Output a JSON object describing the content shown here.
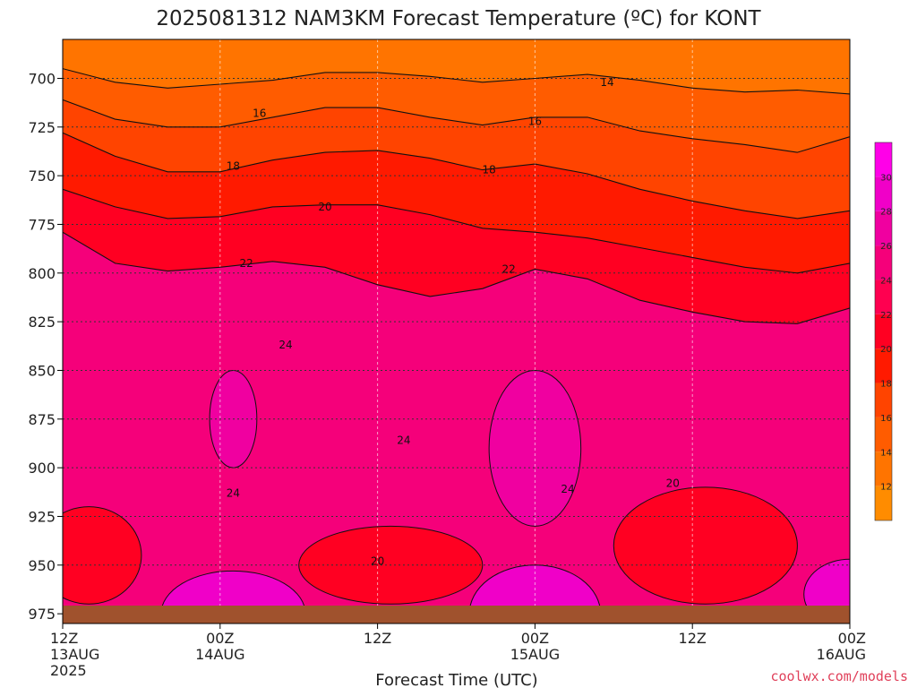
{
  "chart_data": {
    "type": "heatmap",
    "title": "2025081312 NAM3KM Forecast Temperature (ºC) for KONT",
    "xlabel": "Forecast Time (UTC)",
    "ylabel": "",
    "credit": "coolwx.com/models",
    "x_unit": "hours from 2025-08-13 12Z",
    "xlim": [
      0,
      60
    ],
    "ylim": [
      980,
      680
    ],
    "y_ticks": [
      700,
      725,
      750,
      775,
      800,
      825,
      850,
      875,
      900,
      925,
      950,
      975
    ],
    "x_ticks": [
      {
        "x": 0,
        "label": "12Z",
        "sub": "13AUG",
        "sub2": "2025"
      },
      {
        "x": 12,
        "label": "00Z",
        "sub": "14AUG",
        "sub2": ""
      },
      {
        "x": 24,
        "label": "12Z",
        "sub": "",
        "sub2": ""
      },
      {
        "x": 36,
        "label": "00Z",
        "sub": "15AUG",
        "sub2": ""
      },
      {
        "x": 48,
        "label": "12Z",
        "sub": "",
        "sub2": ""
      },
      {
        "x": 60,
        "label": "00Z",
        "sub": "16AUG",
        "sub2": ""
      }
    ],
    "grid": true,
    "surface_pressure_approx": 975,
    "colorbar": {
      "levels": [
        10,
        12,
        14,
        16,
        18,
        20,
        22,
        24,
        26,
        28,
        30,
        32
      ],
      "labels": [
        12,
        14,
        16,
        18,
        20,
        22,
        24,
        26,
        28,
        30
      ],
      "colors": [
        "#ff8c00",
        "#ff7400",
        "#ff5c00",
        "#ff4400",
        "#ff1a00",
        "#ff0022",
        "#ff0050",
        "#f5007a",
        "#f000a0",
        "#f000c8",
        "#ff00e8"
      ]
    },
    "contours": [
      {
        "level": 14,
        "points": [
          [
            0,
            695
          ],
          [
            4,
            702
          ],
          [
            8,
            705
          ],
          [
            12,
            703
          ],
          [
            16,
            701
          ],
          [
            20,
            697
          ],
          [
            24,
            697
          ],
          [
            28,
            699
          ],
          [
            32,
            702
          ],
          [
            36,
            700
          ],
          [
            40,
            698
          ],
          [
            44,
            701
          ],
          [
            48,
            705
          ],
          [
            52,
            707
          ],
          [
            56,
            706
          ],
          [
            60,
            708
          ]
        ]
      },
      {
        "level": 16,
        "points": [
          [
            0,
            711
          ],
          [
            4,
            721
          ],
          [
            8,
            725
          ],
          [
            12,
            725
          ],
          [
            16,
            720
          ],
          [
            20,
            715
          ],
          [
            24,
            715
          ],
          [
            28,
            720
          ],
          [
            32,
            724
          ],
          [
            36,
            720
          ],
          [
            40,
            720
          ],
          [
            44,
            727
          ],
          [
            48,
            731
          ],
          [
            52,
            734
          ],
          [
            56,
            738
          ],
          [
            60,
            730
          ]
        ]
      },
      {
        "level": 18,
        "points": [
          [
            0,
            728
          ],
          [
            4,
            740
          ],
          [
            8,
            748
          ],
          [
            12,
            748
          ],
          [
            16,
            742
          ],
          [
            20,
            738
          ],
          [
            24,
            737
          ],
          [
            28,
            741
          ],
          [
            32,
            747
          ],
          [
            36,
            744
          ],
          [
            40,
            749
          ],
          [
            44,
            757
          ],
          [
            48,
            763
          ],
          [
            52,
            768
          ],
          [
            56,
            772
          ],
          [
            60,
            768
          ]
        ]
      },
      {
        "level": 20,
        "points": [
          [
            0,
            757
          ],
          [
            4,
            766
          ],
          [
            8,
            772
          ],
          [
            12,
            771
          ],
          [
            16,
            766
          ],
          [
            20,
            765
          ],
          [
            24,
            765
          ],
          [
            28,
            770
          ],
          [
            32,
            777
          ],
          [
            36,
            779
          ],
          [
            40,
            782
          ],
          [
            44,
            787
          ],
          [
            48,
            792
          ],
          [
            52,
            797
          ],
          [
            56,
            800
          ],
          [
            60,
            795
          ]
        ]
      },
      {
        "level": 22,
        "points": [
          [
            0,
            779
          ],
          [
            4,
            795
          ],
          [
            8,
            799
          ],
          [
            12,
            797
          ],
          [
            16,
            794
          ],
          [
            20,
            797
          ],
          [
            24,
            806
          ],
          [
            28,
            812
          ],
          [
            32,
            808
          ],
          [
            36,
            798
          ],
          [
            40,
            803
          ],
          [
            44,
            814
          ],
          [
            48,
            820
          ],
          [
            52,
            825
          ],
          [
            56,
            826
          ],
          [
            60,
            818
          ]
        ]
      }
    ],
    "contour_labels": [
      {
        "text": "14",
        "x": 41.5,
        "p": 702
      },
      {
        "text": "16",
        "x": 15,
        "p": 718
      },
      {
        "text": "16",
        "x": 36,
        "p": 722
      },
      {
        "text": "18",
        "x": 13,
        "p": 745
      },
      {
        "text": "18",
        "x": 32.5,
        "p": 747
      },
      {
        "text": "20",
        "x": 20,
        "p": 766
      },
      {
        "text": "22",
        "x": 14,
        "p": 795
      },
      {
        "text": "22",
        "x": 34,
        "p": 798
      },
      {
        "text": "24",
        "x": 17,
        "p": 837
      },
      {
        "text": "24",
        "x": 26,
        "p": 886
      },
      {
        "text": "24",
        "x": 13,
        "p": 913
      },
      {
        "text": "24",
        "x": 38.5,
        "p": 911
      },
      {
        "text": "20",
        "x": 24,
        "p": 948
      },
      {
        "text": "20",
        "x": 46.5,
        "p": 908
      }
    ]
  }
}
